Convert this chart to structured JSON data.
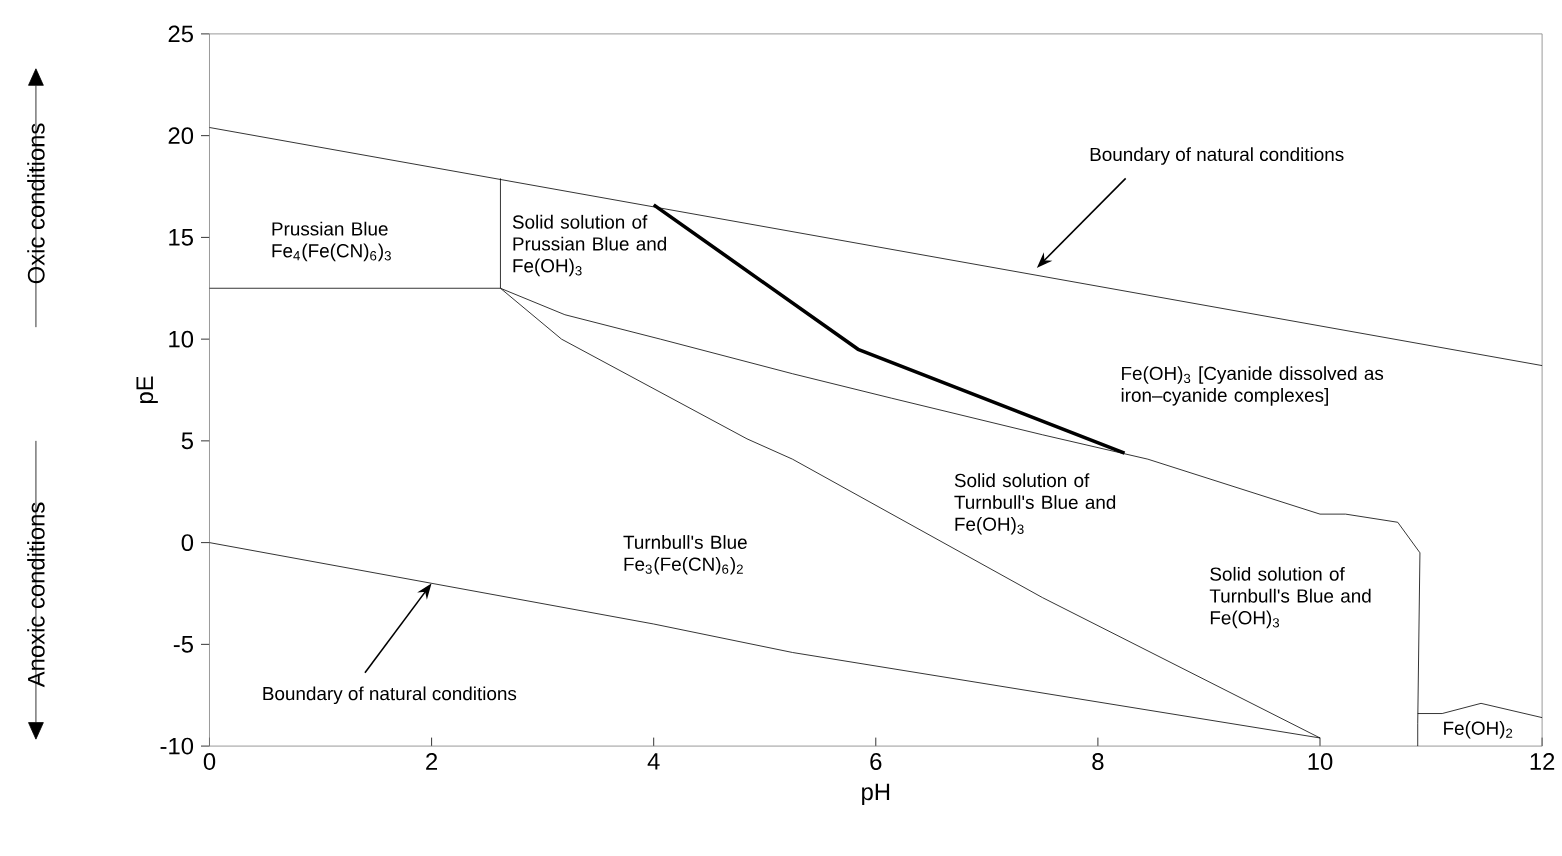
{
  "chart_data": {
    "type": "line",
    "xlabel": "pH",
    "ylabel": "pE",
    "xlim": [
      0,
      12
    ],
    "ylim": [
      -10,
      25
    ],
    "xticks": [
      0,
      2,
      4,
      6,
      8,
      10,
      12
    ],
    "yticks": [
      -10,
      -5,
      0,
      5,
      10,
      15,
      20,
      25
    ],
    "marker": "none",
    "line_style": "solid",
    "series": [
      {
        "color": "#000000",
        "x": [
          0,
          12
        ],
        "values": [
          20.4,
          8.7
        ]
      },
      {
        "color": "#000000",
        "x": [
          0,
          2,
          4,
          5.25,
          10
        ],
        "values": [
          0,
          -2,
          -4,
          -5.4,
          -9.6
        ]
      },
      {
        "color": "#000000",
        "x": [
          0,
          2.62,
          2.62
        ],
        "values": [
          12.5,
          12.5,
          17.9
        ]
      },
      {
        "color": "#000000",
        "x": [
          4,
          5.84,
          8.24
        ],
        "values": [
          16.6,
          9.5,
          4.4
        ]
      },
      {
        "color": "#000000",
        "x": [
          2.62,
          3.2,
          4.06,
          5.25,
          6.14,
          7.5,
          8.45,
          10,
          10.23,
          10.7,
          10.9,
          10.88,
          10.88
        ],
        "values": [
          12.5,
          11.2,
          10.0,
          8.3,
          7.1,
          5.3,
          4.1,
          1.4,
          1.4,
          1.0,
          -0.5,
          -8.9,
          -10
        ]
      },
      {
        "color": "#000000",
        "x": [
          2.62,
          3.17,
          4.84,
          5.25,
          7.5,
          10
        ],
        "values": [
          12.5,
          10,
          5.1,
          4.1,
          -2.7,
          -9.6
        ]
      },
      {
        "color": "#000000",
        "x": [
          10.88,
          11.1,
          11.45,
          12
        ],
        "values": [
          -8.4,
          -8.4,
          -7.9,
          -8.6
        ]
      }
    ],
    "annotations": [
      "Prussian Blue Fe$_{4}$(Fe(CN)$_{6}$)$_{3}$",
      "Solid solution of  Prussian Blue and Fe(OH)$_{3}$",
      "Fe(OH)$_{3}$ [Cyanide dissolved as iron–cyanide complexes]",
      "Solid solution of Turnbull's Blue and Fe(OH)$_{3}$",
      "Solid solution of Turnbull's Blue and Fe(OH)$_{3}$",
      "Turnbull's Blue Fe$_{3}$(Fe(CN)$_{6}$)$_{2}$",
      "Fe(OH)$_{2}$",
      {
        "text": "Boundary of natural conditions",
        "x": 7.45,
        "y": 13.5
      },
      {
        "text": "Boundary of natural conditions",
        "x": 2.0,
        "y": -2.0
      },
      "Oxic conditions",
      "Anoxic conditions"
    ]
  }
}
